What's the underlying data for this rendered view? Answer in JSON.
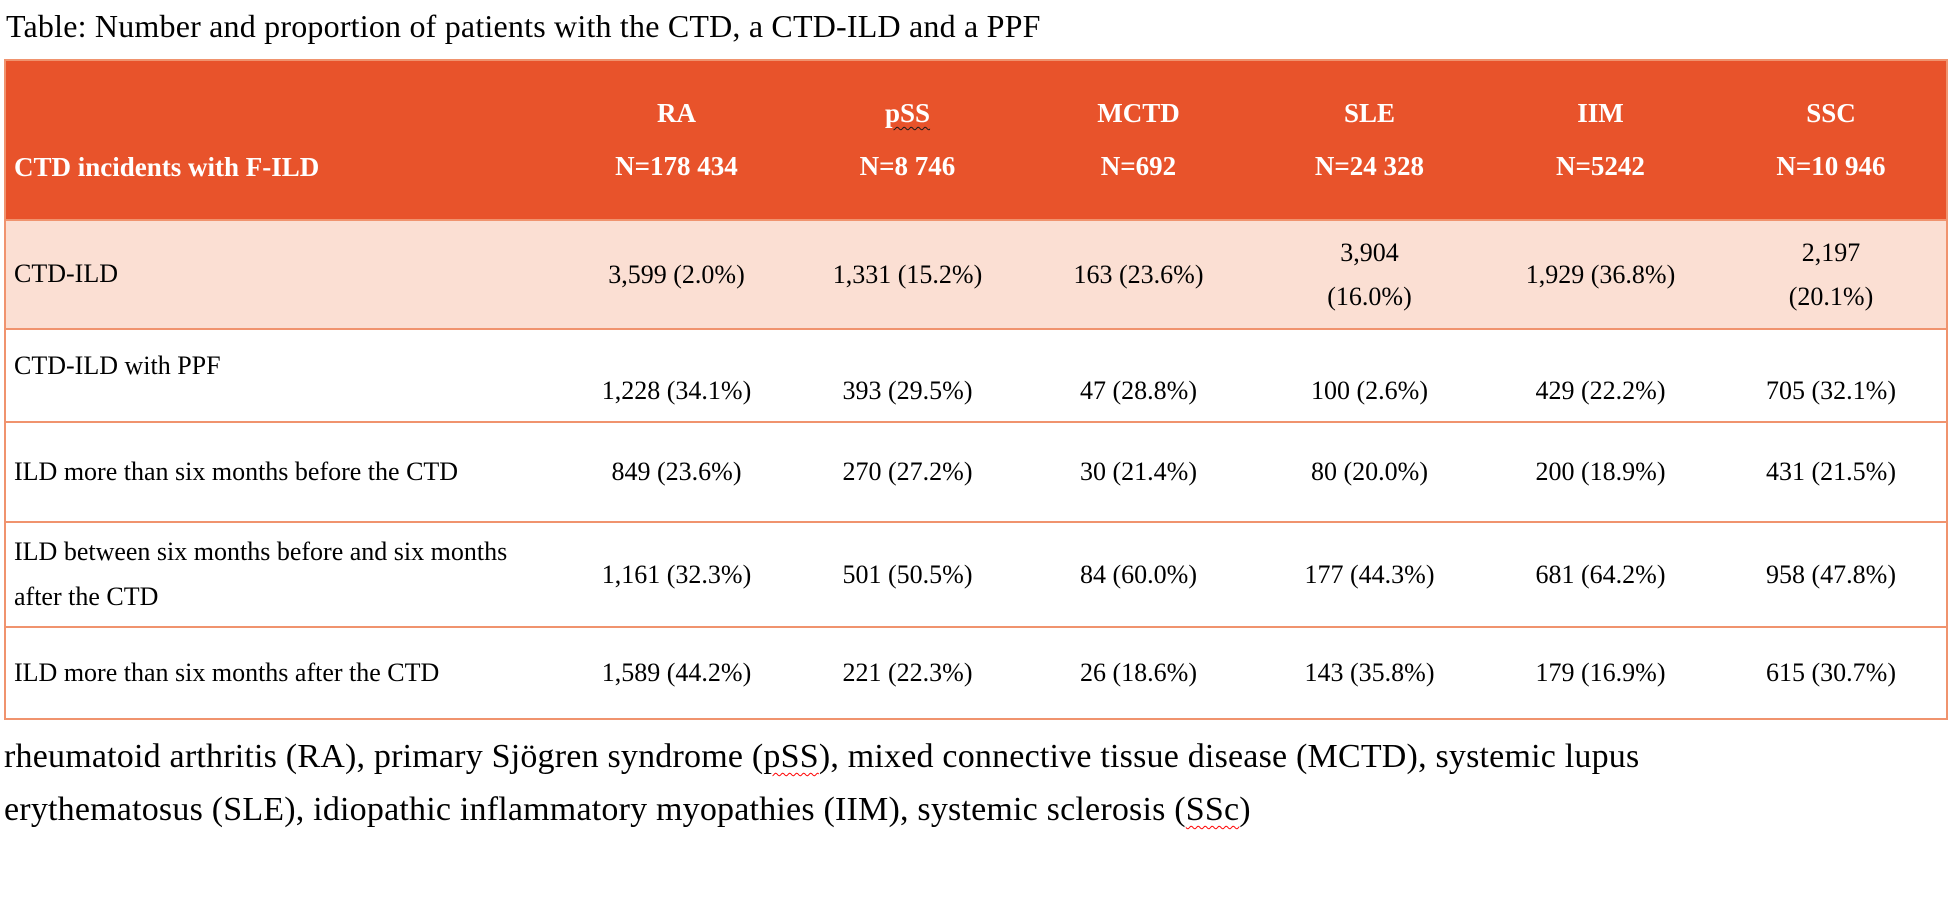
{
  "title": "Table: Number and proportion of patients with the CTD, a CTD-ILD and a PPF",
  "colors": {
    "header_background": "#E8532B",
    "header_text": "#FFFFFF",
    "highlight_row_background": "#FBDFD3",
    "table_border": "#F0936E",
    "body_text": "#000000",
    "spellcheck_squiggle_header": "#1A1A1A",
    "spellcheck_squiggle_footnote": "#FF0000"
  },
  "table": {
    "header": {
      "label": "CTD incidents with F-ILD",
      "columns": [
        {
          "name": "RA",
          "n": "N=178 434"
        },
        {
          "name": "pSS",
          "n": "N=8 746"
        },
        {
          "name": "MCTD",
          "n": "N=692"
        },
        {
          "name": "SLE",
          "n": "N=24 328"
        },
        {
          "name": "IIM",
          "n": "N=5242"
        },
        {
          "name": "SSC",
          "n": "N=10 946"
        }
      ]
    },
    "rows": [
      {
        "label": "CTD-ILD",
        "values": [
          "3,599 (2.0%)",
          "1,331 (15.2%)",
          "163 (23.6%)",
          "3,904\n(16.0%)",
          "1,929 (36.8%)",
          "2,197\n(20.1%)"
        ]
      },
      {
        "label": "CTD-ILD with PPF",
        "values": [
          "1,228 (34.1%)",
          "393 (29.5%)",
          "47 (28.8%)",
          "100 (2.6%)",
          "429 (22.2%)",
          "705 (32.1%)"
        ]
      },
      {
        "label": "ILD more than six months before the CTD",
        "values": [
          "849 (23.6%)",
          "270 (27.2%)",
          "30 (21.4%)",
          "80 (20.0%)",
          "200 (18.9%)",
          "431 (21.5%)"
        ]
      },
      {
        "label": "ILD between six months before and six months after the CTD",
        "values": [
          "1,161 (32.3%)",
          "501 (50.5%)",
          "84 (60.0%)",
          "177 (44.3%)",
          "681 (64.2%)",
          "958 (47.8%)"
        ]
      },
      {
        "label": "ILD more than six months after the CTD",
        "values": [
          "1,589 (44.2%)",
          "221 (22.3%)",
          "26 (18.6%)",
          "143 (35.8%)",
          "179 (16.9%)",
          "615 (30.7%)"
        ]
      }
    ]
  },
  "footnote": {
    "parts": [
      {
        "text": "rheumatoid arthritis (RA), primary Sjögren syndrome ("
      },
      {
        "text": "pSS"
      },
      {
        "text": "), mixed connective tissue disease (MCTD), systemic lupus erythematosus (SLE), idiopathic inflammatory myopathies (IIM), systemic sclerosis ("
      },
      {
        "text": "SSc"
      },
      {
        "text": ")"
      }
    ]
  }
}
